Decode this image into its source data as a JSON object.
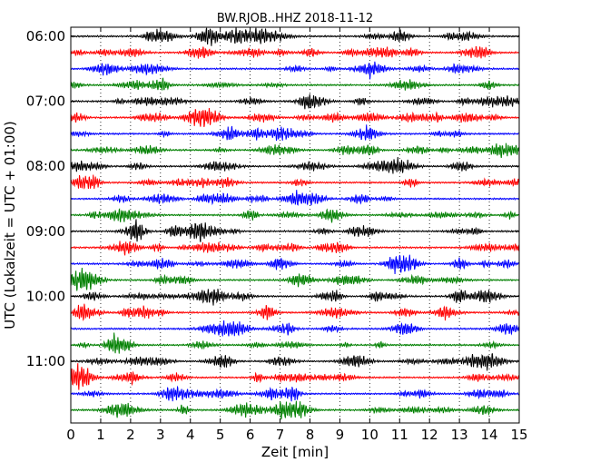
{
  "chart_data": {
    "type": "line",
    "title": "BW.RJOB..HHZ 2018-11-12",
    "xlabel": "Zeit  [min]",
    "ylabel": "UTC (Lokalzeit = UTC + 01:00)",
    "xlim": [
      0,
      15
    ],
    "x_ticks": [
      "0",
      "1",
      "2",
      "3",
      "4",
      "5",
      "6",
      "7",
      "8",
      "9",
      "10",
      "11",
      "12",
      "13",
      "14",
      "15"
    ],
    "y_ticks": [
      "06:00",
      "07:00",
      "08:00",
      "09:00",
      "10:00",
      "11:00"
    ],
    "grid": "vertical dotted lines at each minute",
    "trace_interval_min": 15,
    "start_time": "06:00",
    "trace_colors": [
      "#000000",
      "#ff0000",
      "#0000ff",
      "#008000"
    ],
    "traces": [
      "06:00",
      "06:15",
      "06:30",
      "06:45",
      "07:00",
      "07:15",
      "07:30",
      "07:45",
      "08:00",
      "08:15",
      "08:30",
      "08:45",
      "09:00",
      "09:15",
      "09:30",
      "09:45",
      "10:00",
      "10:15",
      "10:30",
      "10:45",
      "11:00",
      "11:15",
      "11:30",
      "11:45"
    ]
  }
}
